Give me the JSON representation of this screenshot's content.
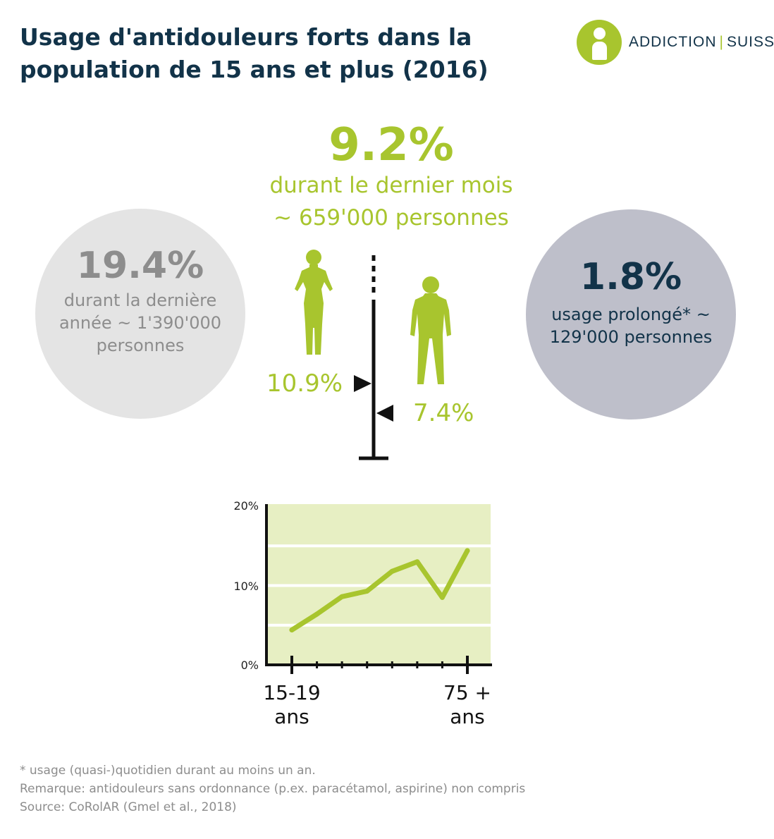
{
  "title": "Usage d'antidouleurs forts dans la population de 15 ans et plus (2016)",
  "logo": {
    "left": "ADDICTION",
    "separator": "|",
    "right": "SUISSE"
  },
  "month": {
    "value": "9.2%",
    "line1": "durant le dernier mois",
    "line2": "~ 659'000 personnes"
  },
  "year": {
    "value": "19.4%",
    "text": "durant la dernière année ~ 1'390'000 personnes"
  },
  "prolonged": {
    "value": "1.8%",
    "text": "usage prolongé* ~ 129'000 personnes"
  },
  "gender": {
    "women": "10.9%",
    "men": "7.4%"
  },
  "colors": {
    "green": "#a8c52e",
    "navy": "#123349",
    "chart_bg": "#e7efc3",
    "circle_grey": "#e4e4e4",
    "circle_blue": "#bebfca"
  },
  "chart_data": {
    "type": "line",
    "x_first_label": [
      "15-19",
      "ans"
    ],
    "x_last_label": [
      "75 +",
      "ans"
    ],
    "y_ticks": [
      "20%",
      "10%",
      "0%"
    ],
    "ylim": [
      0,
      20
    ],
    "grid": true,
    "series": [
      {
        "values": [
          4.4,
          6.4,
          8.6,
          9.3,
          11.8,
          13.0,
          8.5,
          14.4
        ]
      }
    ]
  },
  "notes": [
    "* usage (quasi-)quotidien durant au moins un an.",
    "Remarque: antidouleurs sans ordonnance (p.ex. paracétamol, aspirine) non compris",
    "Source: CoRolAR (Gmel et al., 2018)"
  ]
}
